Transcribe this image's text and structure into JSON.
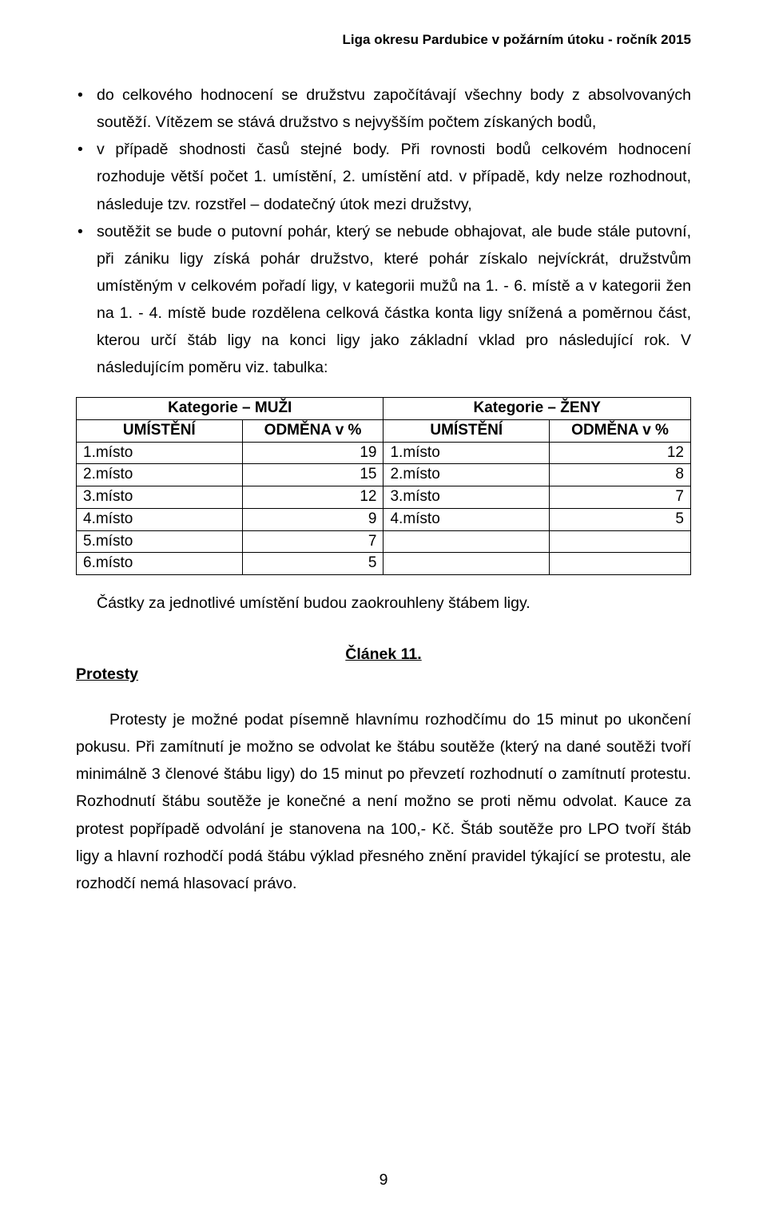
{
  "header": {
    "running_title": "Liga okresu Pardubice v požárním útoku  - ročník 2015"
  },
  "bullets": {
    "item1": "do celkového hodnocení se družstvu započítávají všechny body z absolvovaných soutěží. Vítězem se stává družstvo s nejvyšším počtem získaných bodů,",
    "item2": "v případě shodnosti časů stejné body. Při rovnosti bodů celkovém hodnocení rozhoduje větší počet 1. umístění, 2. umístění atd. v případě, kdy nelze rozhodnout, následuje tzv. rozstřel – dodatečný útok mezi družstvy,",
    "item3": "soutěžit se bude o putovní pohár, který se nebude obhajovat, ale bude stále putovní, při zániku ligy získá pohár družstvo, které pohár získalo nejvíckrát, družstvům umístěným v celkovém pořadí ligy, v kategorii mužů na 1. - 6. místě a v kategorii žen na 1. - 4. místě bude rozdělena celková částka konta ligy snížená a poměrnou část, kterou určí štáb ligy na konci ligy jako základní vklad pro následující rok. V následujícím poměru viz. tabulka:"
  },
  "table": {
    "cat_men": "Kategorie – MUŽI",
    "cat_women": "Kategorie – ŽENY",
    "col_place": "UMÍSTĚNÍ",
    "col_pct": "ODMĚNA v %",
    "men": [
      {
        "place": "1.místo",
        "pct": "19"
      },
      {
        "place": "2.místo",
        "pct": "15"
      },
      {
        "place": "3.místo",
        "pct": "12"
      },
      {
        "place": "4.místo",
        "pct": "9"
      },
      {
        "place": "5.místo",
        "pct": "7"
      },
      {
        "place": "6.místo",
        "pct": "5"
      }
    ],
    "women": [
      {
        "place": "1.místo",
        "pct": "12"
      },
      {
        "place": "2.místo",
        "pct": "8"
      },
      {
        "place": "3.místo",
        "pct": "7"
      },
      {
        "place": "4.místo",
        "pct": "5"
      },
      {
        "place": "",
        "pct": ""
      },
      {
        "place": "",
        "pct": ""
      }
    ]
  },
  "after_table": "Částky za jednotlivé umístění budou zaokrouhleny štábem ligy.",
  "article": {
    "number": "Článek 11.",
    "title": "Protesty",
    "body": "Protesty je možné podat písemně hlavnímu rozhodčímu do 15 minut po ukončení pokusu. Při zamítnutí je možno se odvolat ke štábu soutěže (který na dané soutěži tvoří minimálně 3 členové štábu ligy) do 15 minut po převzetí rozhodnutí o zamítnutí protestu. Rozhodnutí štábu soutěže je konečné a není možno se proti němu odvolat. Kauce za protest popřípadě odvolání je stanovena na 100,- Kč. Štáb soutěže pro LPO tvoří štáb ligy a hlavní rozhodčí podá štábu výklad přesného znění pravidel týkající se protestu, ale rozhodčí nemá hlasovací právo."
  },
  "page_number": "9"
}
